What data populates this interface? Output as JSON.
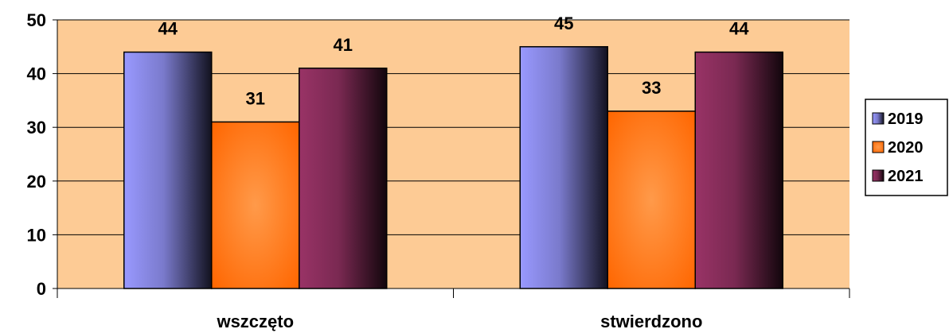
{
  "chart_data": {
    "type": "bar",
    "categories": [
      "wszczęto",
      "stwierdzono"
    ],
    "series": [
      {
        "name": "2019",
        "values": [
          44,
          45
        ],
        "color": "#9999ff"
      },
      {
        "name": "2020",
        "values": [
          31,
          33
        ],
        "color": "#ff6600"
      },
      {
        "name": "2021",
        "values": [
          41,
          44
        ],
        "color": "#993366"
      }
    ],
    "ylim": [
      0,
      50
    ],
    "yticks": [
      0,
      10,
      20,
      30,
      40,
      50
    ],
    "grid": true,
    "legend": "right",
    "plot_background": "#fdcb95"
  }
}
